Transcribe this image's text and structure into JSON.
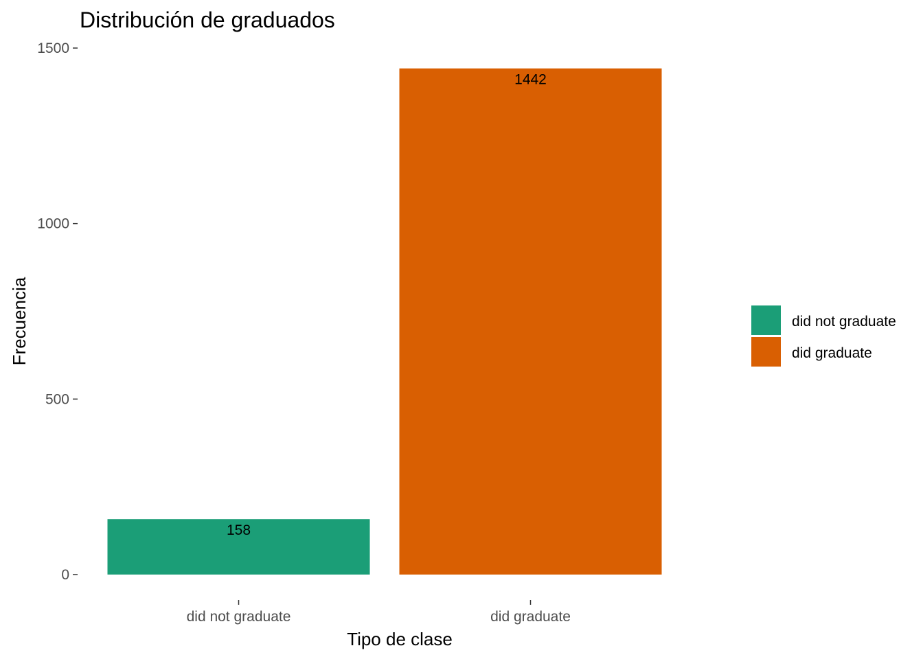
{
  "chart_data": {
    "type": "bar",
    "title": "Distribución de graduados",
    "xlabel": "Tipo de clase",
    "ylabel": "Frecuencia",
    "categories": [
      "did not graduate",
      "did graduate"
    ],
    "values": [
      158,
      1442
    ],
    "data_labels": [
      "158",
      "1442"
    ],
    "colors": [
      "#1b9e77",
      "#d95f02"
    ],
    "ylim": [
      0,
      1500
    ],
    "y_ticks": [
      0,
      500,
      1000,
      1500
    ],
    "y_tick_labels": [
      "0",
      "500",
      "1000",
      "1500"
    ],
    "grid": false,
    "legend": {
      "position": "right",
      "entries": [
        {
          "label": "did not graduate",
          "color": "#1b9e77"
        },
        {
          "label": "did graduate",
          "color": "#d95f02"
        }
      ]
    }
  }
}
